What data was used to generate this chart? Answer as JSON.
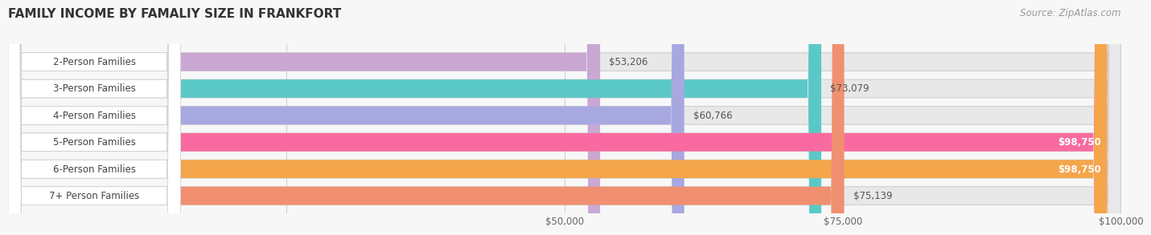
{
  "title": "FAMILY INCOME BY FAMALIY SIZE IN FRANKFORT",
  "source": "Source: ZipAtlas.com",
  "categories": [
    "2-Person Families",
    "3-Person Families",
    "4-Person Families",
    "5-Person Families",
    "6-Person Families",
    "7+ Person Families"
  ],
  "values": [
    53206,
    73079,
    60766,
    98750,
    98750,
    75139
  ],
  "bar_colors": [
    "#c9a8d4",
    "#5bc8c8",
    "#a8a8e0",
    "#f96ba0",
    "#f5a54a",
    "#f09070"
  ],
  "value_labels": [
    "$53,206",
    "$73,079",
    "$60,766",
    "$98,750",
    "$98,750",
    "$75,139"
  ],
  "value_inside": [
    false,
    false,
    false,
    true,
    true,
    false
  ],
  "xlim": [
    0,
    100000
  ],
  "xticks": [
    0,
    25000,
    50000,
    75000,
    100000
  ],
  "xtick_labels": [
    "",
    "",
    "$50,000",
    "$75,000",
    "$100,000"
  ],
  "bg_color": "#f7f7f7",
  "bar_bg_color": "#e8e8e8",
  "title_fontsize": 11,
  "source_fontsize": 8.5,
  "bar_height": 0.68,
  "label_fontsize": 8.5,
  "value_fontsize": 8.5,
  "grid_color": "#cccccc"
}
